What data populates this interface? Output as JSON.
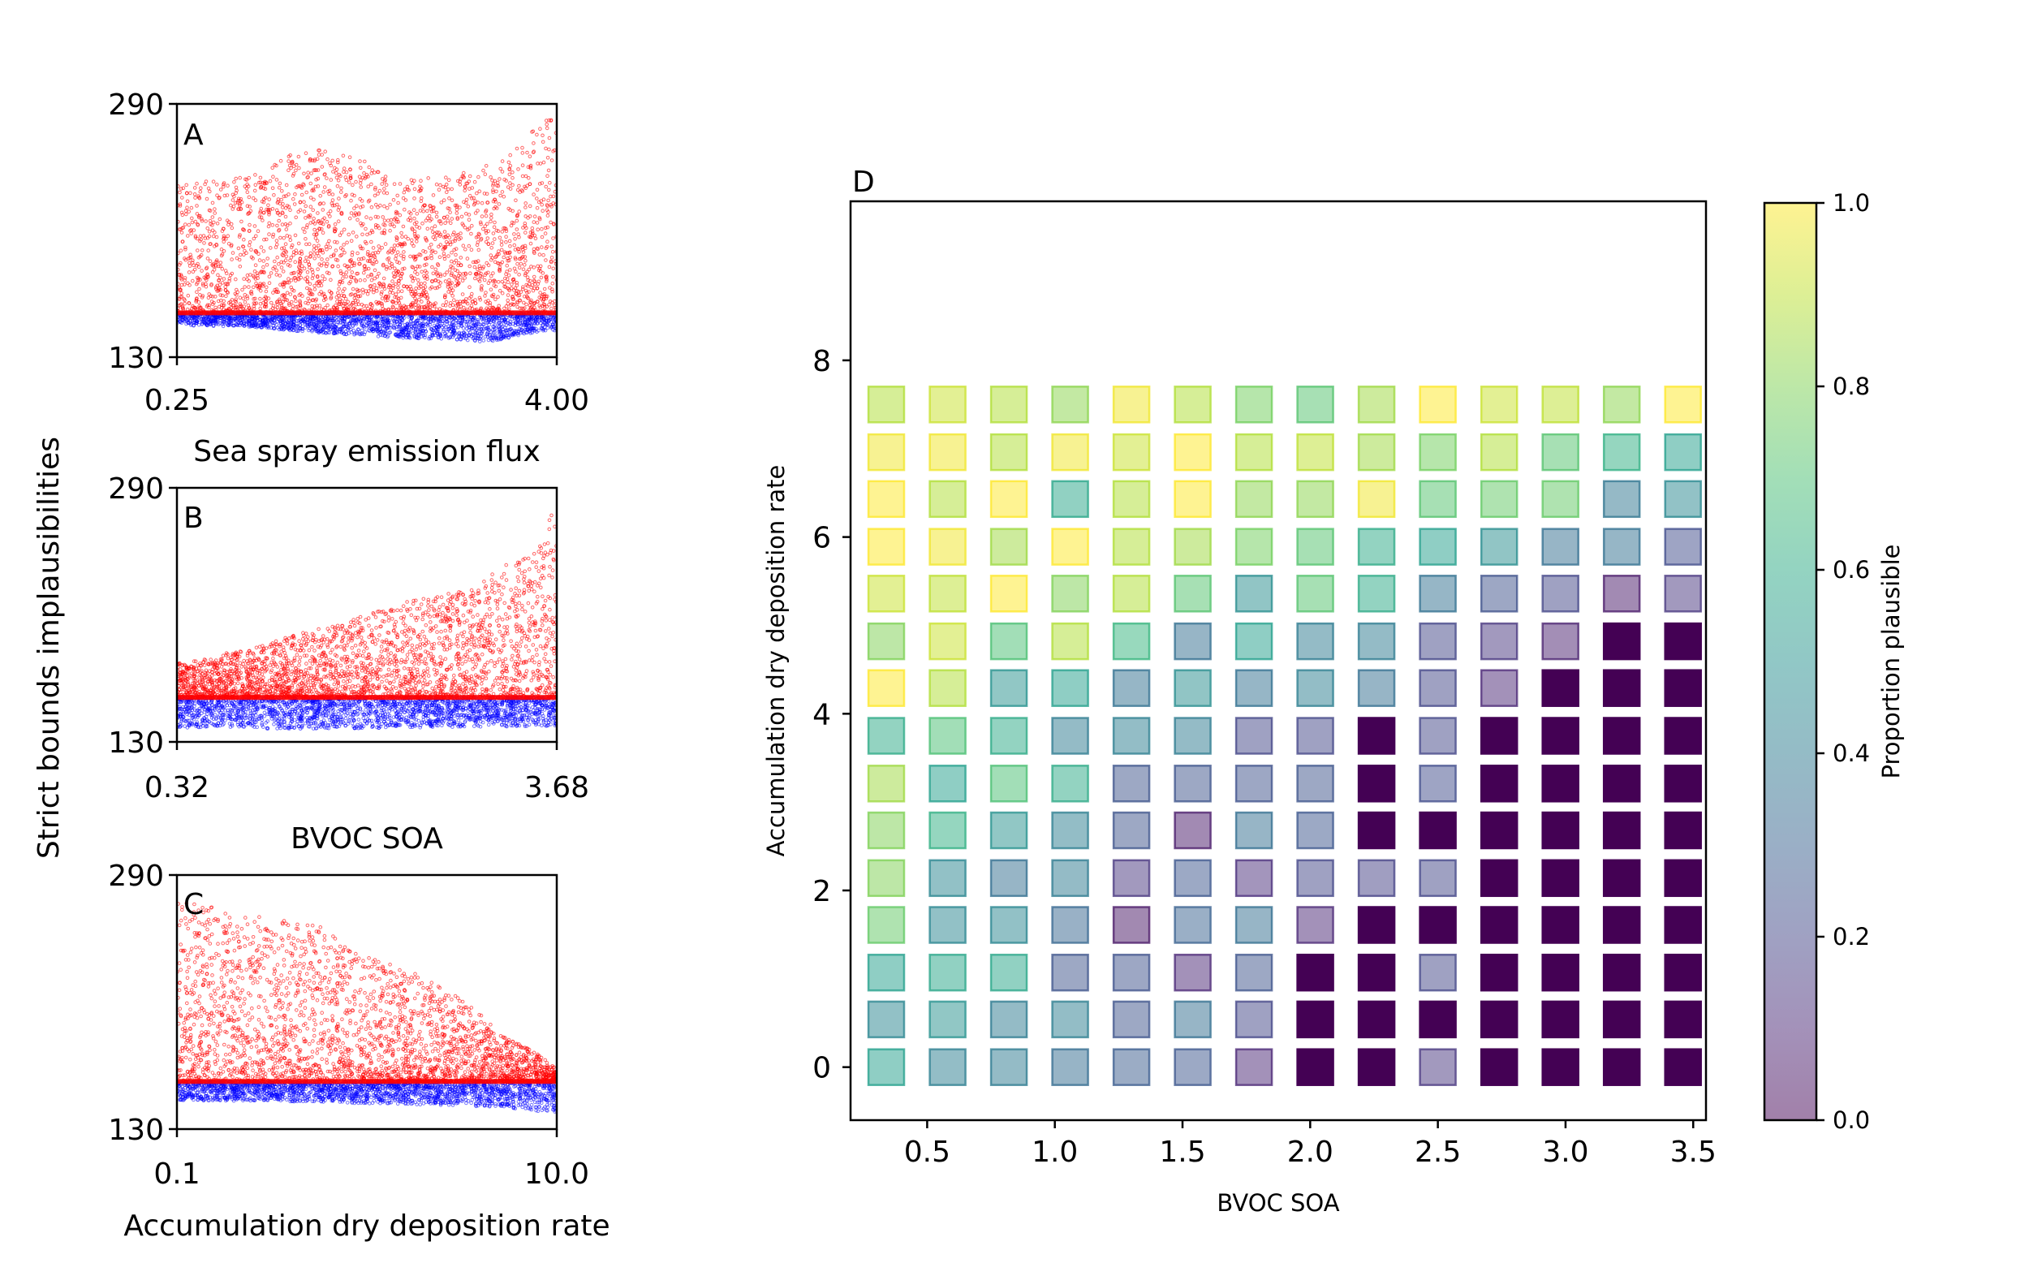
{
  "figure": {
    "shared_ylabel": "Strict bounds implausibilities"
  },
  "chart_data": [
    {
      "type": "scatter",
      "panel_label": "A",
      "xlabel": "Sea spray emission flux",
      "ylabel": "Strict bounds implausibilities",
      "xlim": [
        0.25,
        4.0
      ],
      "ylim": [
        130,
        290
      ],
      "xticks": [
        "0.25",
        "4.00"
      ],
      "yticks": [
        "130",
        "290"
      ],
      "threshold": 158,
      "grid": false,
      "series": [
        {
          "color": "#ff0000",
          "pattern": "implausible points above threshold, upper envelope ~230-265, rising to ~280 at right edge",
          "x": [
            0.4,
            1.0,
            1.5,
            2.0,
            2.5,
            3.0,
            3.5,
            3.9
          ],
          "y_max": [
            240,
            245,
            262,
            258,
            242,
            245,
            255,
            283
          ]
        },
        {
          "color": "#0000ff",
          "pattern": "plausible points below threshold, lowest ~139 near x=3.3",
          "x": [
            0.3,
            1.0,
            1.5,
            2.0,
            2.5,
            3.0,
            3.3,
            3.8
          ],
          "y_min": [
            150,
            149,
            146,
            144,
            142,
            141,
            139,
            146
          ]
        }
      ]
    },
    {
      "type": "scatter",
      "panel_label": "B",
      "xlabel": "BVOC SOA",
      "ylabel": "Strict bounds implausibilities",
      "xlim": [
        0.32,
        3.68
      ],
      "ylim": [
        130,
        290
      ],
      "xticks": [
        "0.32",
        "3.68"
      ],
      "yticks": [
        "130",
        "290"
      ],
      "threshold": 158,
      "grid": false,
      "series": [
        {
          "color": "#ff0000",
          "pattern": "implausibility increases with BVOC SOA",
          "x": [
            0.4,
            1.0,
            1.5,
            2.0,
            2.5,
            3.0,
            3.5,
            3.65
          ],
          "y_max": [
            180,
            190,
            200,
            210,
            222,
            230,
            255,
            275
          ]
        },
        {
          "color": "#0000ff",
          "pattern": "plausible points below threshold",
          "x": [
            0.4,
            1.5,
            2.5,
            3.6
          ],
          "y_min": [
            139,
            138,
            139,
            140
          ]
        }
      ]
    },
    {
      "type": "scatter",
      "panel_label": "C",
      "xlabel": "Accumulation dry deposition rate",
      "ylabel": "Strict bounds implausibilities",
      "xlim": [
        0.1,
        10.0
      ],
      "xscale": "log",
      "ylim": [
        130,
        290
      ],
      "xticks": [
        "0.1",
        "10.0"
      ],
      "yticks": [
        "130",
        "290"
      ],
      "threshold": 160,
      "grid": false,
      "series": [
        {
          "color": "#ff0000",
          "pattern": "implausibility decreases with deposition rate",
          "x": [
            0.1,
            0.2,
            0.5,
            1.0,
            2.0,
            5.0,
            10.0
          ],
          "y_max": [
            275,
            265,
            260,
            240,
            225,
            190,
            168
          ]
        },
        {
          "color": "#0000ff",
          "pattern": "plausible points below threshold",
          "x": [
            0.1,
            1.0,
            10.0
          ],
          "y_min": [
            148,
            146,
            140
          ]
        }
      ]
    },
    {
      "type": "heatmap",
      "panel_label": "D",
      "xlabel": "BVOC SOA",
      "ylabel": "Accumulation dry deposition rate",
      "colorbar_label": "Proportion plausible",
      "xlim": [
        0.2,
        3.55
      ],
      "ylim": [
        -0.6,
        9.8
      ],
      "xticks": [
        "0.5",
        "1.0",
        "1.5",
        "2.0",
        "2.5",
        "3.0",
        "3.5"
      ],
      "yticks": [
        "0",
        "2",
        "4",
        "6",
        "8"
      ],
      "colorbar_ticks": [
        "0.0",
        "0.2",
        "0.4",
        "0.6",
        "0.8",
        "1.0"
      ],
      "colormap": "viridis",
      "zero_color": "#440154",
      "x": [
        0.34,
        0.58,
        0.82,
        1.06,
        1.3,
        1.54,
        1.78,
        2.02,
        2.26,
        2.5,
        2.74,
        2.98,
        3.22,
        3.46
      ],
      "y": [
        0,
        0.54,
        1.07,
        1.61,
        2.14,
        2.68,
        3.21,
        3.75,
        4.29,
        4.82,
        5.36,
        5.89,
        6.43,
        6.96,
        7.5
      ],
      "values": [
        [
          0.55,
          0.42,
          0.4,
          0.34,
          0.28,
          0.26,
          0.1,
          0,
          0,
          0.15,
          0,
          0,
          0,
          0
        ],
        [
          0.45,
          0.5,
          0.4,
          0.42,
          0.25,
          0.35,
          0.2,
          0,
          0,
          0,
          0,
          0,
          0,
          0
        ],
        [
          0.55,
          0.58,
          0.58,
          0.25,
          0.24,
          0.1,
          0.25,
          0,
          0,
          0.2,
          0,
          0,
          0,
          0
        ],
        [
          0.75,
          0.45,
          0.45,
          0.32,
          0.05,
          0.3,
          0.35,
          0.1,
          0,
          0,
          0,
          0,
          0,
          0
        ],
        [
          0.8,
          0.45,
          0.35,
          0.4,
          0.15,
          0.26,
          0.12,
          0.2,
          0.18,
          0.2,
          0,
          0,
          0,
          0
        ],
        [
          0.8,
          0.62,
          0.5,
          0.42,
          0.25,
          0.06,
          0.35,
          0.26,
          0,
          0,
          0,
          0,
          0,
          0
        ],
        [
          0.85,
          0.55,
          0.7,
          0.6,
          0.25,
          0.25,
          0.24,
          0.25,
          0,
          0.22,
          0,
          0,
          0,
          0
        ],
        [
          0.6,
          0.7,
          0.6,
          0.4,
          0.42,
          0.4,
          0.2,
          0.2,
          0,
          0.2,
          0,
          0,
          0,
          0
        ],
        [
          1.0,
          0.88,
          0.5,
          0.55,
          0.36,
          0.48,
          0.36,
          0.42,
          0.35,
          0.2,
          0.1,
          0,
          0,
          0
        ],
        [
          0.8,
          0.92,
          0.7,
          0.88,
          0.65,
          0.35,
          0.55,
          0.4,
          0.4,
          0.2,
          0.15,
          0.08,
          0,
          0
        ],
        [
          0.92,
          0.9,
          1.0,
          0.8,
          0.88,
          0.72,
          0.48,
          0.72,
          0.6,
          0.36,
          0.24,
          0.2,
          0.06,
          0.15
        ],
        [
          1.0,
          0.98,
          0.85,
          1.0,
          0.88,
          0.85,
          0.78,
          0.72,
          0.6,
          0.55,
          0.48,
          0.35,
          0.36,
          0.22
        ],
        [
          1.0,
          0.88,
          1.0,
          0.58,
          0.88,
          1.0,
          0.82,
          0.82,
          0.98,
          0.72,
          0.75,
          0.75,
          0.38,
          0.46
        ],
        [
          0.98,
          0.98,
          0.88,
          0.98,
          0.92,
          1.0,
          0.88,
          0.9,
          0.85,
          0.78,
          0.88,
          0.72,
          0.62,
          0.55
        ],
        [
          0.88,
          0.92,
          0.88,
          0.82,
          0.98,
          0.88,
          0.78,
          0.72,
          0.85,
          1.0,
          0.92,
          0.9,
          0.82,
          1.0
        ]
      ]
    }
  ]
}
